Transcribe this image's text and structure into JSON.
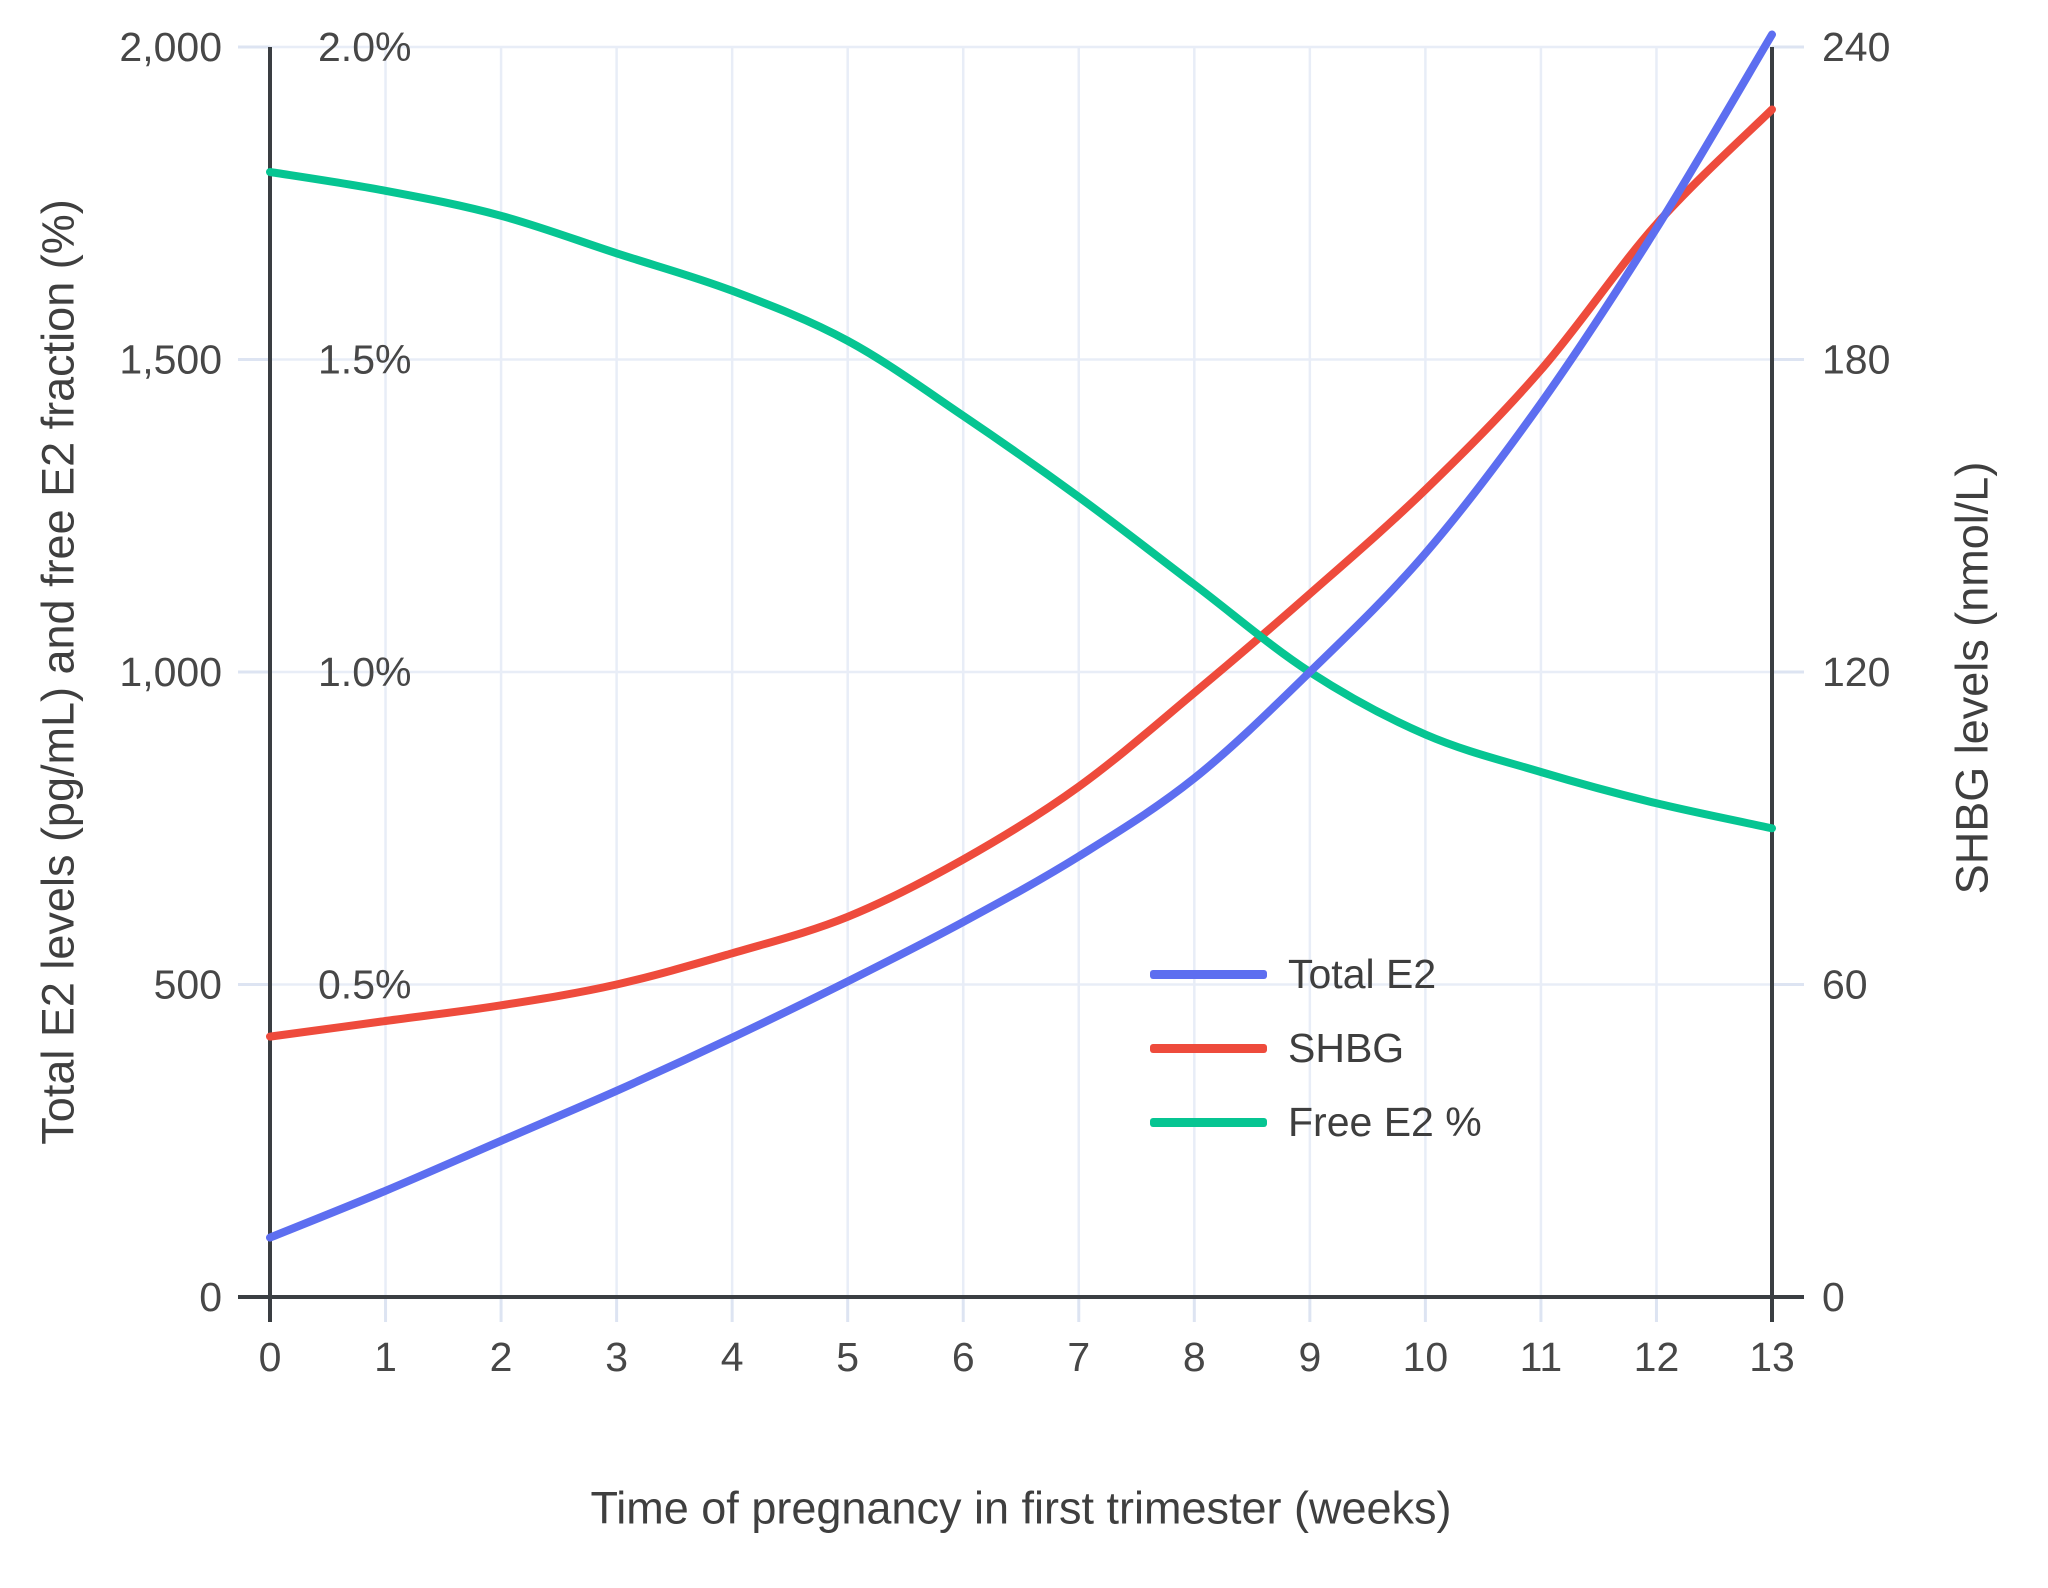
{
  "chart_data": {
    "type": "line",
    "title": "",
    "xlabel": "Time of pregnancy in first trimester (weeks)",
    "ylabel_left": "Total E2 levels (pg/mL) and free E2 fraction (%)",
    "ylabel_right": "SHBG levels (nmol/L)",
    "xlim": [
      0,
      13
    ],
    "ylim_left": [
      0,
      2000
    ],
    "ylim_right": [
      0,
      240
    ],
    "grid": true,
    "legend_position": "center-right",
    "x": [
      0,
      1,
      2,
      3,
      4,
      5,
      6,
      7,
      8,
      9,
      10,
      11,
      12,
      13
    ],
    "x_tick_labels": [
      "0",
      "1",
      "2",
      "3",
      "4",
      "5",
      "6",
      "7",
      "8",
      "9",
      "10",
      "11",
      "12",
      "13"
    ],
    "y_left_tick_values": [
      0,
      500,
      1000,
      1500,
      2000
    ],
    "y_left_tick_labels": [
      "0",
      "500",
      "1,000",
      "1,500",
      "2,000"
    ],
    "pct_tick_values": [
      0.5,
      1.0,
      1.5,
      2.0
    ],
    "pct_tick_labels": [
      "0.5%",
      "1.0%",
      "1.5%",
      "2.0%"
    ],
    "y_right_tick_values": [
      0,
      60,
      120,
      180,
      240
    ],
    "y_right_tick_labels": [
      "0",
      "60",
      "120",
      "180",
      "240"
    ],
    "series": [
      {
        "name": "Total E2",
        "axis": "left",
        "unit": "pg/mL",
        "color": "#5d6ef0",
        "values": [
          95,
          170,
          250,
          330,
          415,
          505,
          600,
          705,
          830,
          1000,
          1190,
          1430,
          1710,
          2020
        ]
      },
      {
        "name": "SHBG",
        "axis": "right",
        "unit": "nmol/L",
        "color": "#ee4b3c",
        "values": [
          50,
          53,
          56,
          60,
          66,
          73,
          84,
          98,
          116,
          135,
          155,
          178,
          206,
          228
        ]
      },
      {
        "name": "Free E2 %",
        "axis": "percent",
        "unit": "%",
        "color": "#06c592",
        "values": [
          1.8,
          1.77,
          1.73,
          1.67,
          1.61,
          1.53,
          1.41,
          1.28,
          1.14,
          1.0,
          0.9,
          0.84,
          0.79,
          0.75
        ]
      }
    ],
    "colors": {
      "grid": "#e8edf7",
      "tick_dash": "#dde4f2",
      "axis": "#3a3e42",
      "tick_text": "#474747",
      "title_text": "#3f3f3f",
      "background": "#ffffff"
    }
  }
}
